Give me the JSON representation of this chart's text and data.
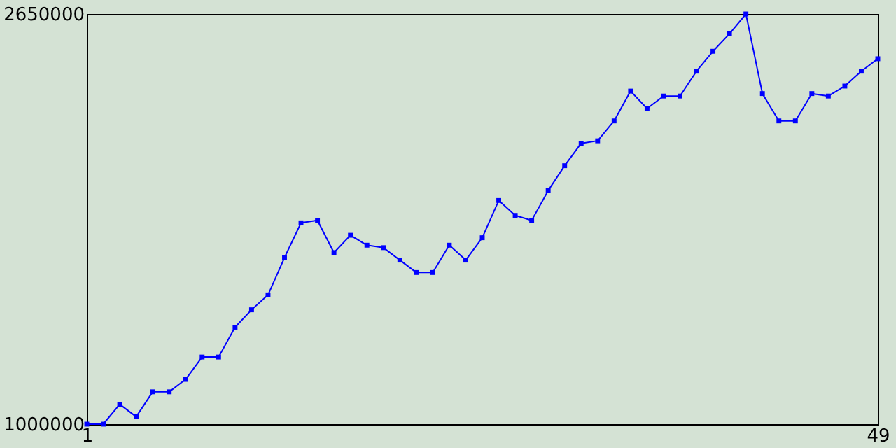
{
  "chart_data": {
    "type": "line",
    "x": [
      1,
      2,
      3,
      4,
      5,
      6,
      7,
      8,
      9,
      10,
      11,
      12,
      13,
      14,
      15,
      16,
      17,
      18,
      19,
      20,
      21,
      22,
      23,
      24,
      25,
      26,
      27,
      28,
      29,
      30,
      31,
      32,
      33,
      34,
      35,
      36,
      37,
      38,
      39,
      40,
      41,
      42,
      43,
      44,
      45,
      46,
      47,
      48,
      49
    ],
    "series": [
      {
        "color": "#0000ff",
        "values": [
          1000000,
          1000000,
          1080000,
          1030000,
          1130000,
          1130000,
          1180000,
          1270000,
          1270000,
          1390000,
          1460000,
          1520000,
          1670000,
          1810000,
          1820000,
          1690000,
          1760000,
          1720000,
          1710000,
          1660000,
          1610000,
          1610000,
          1720000,
          1660000,
          1750000,
          1900000,
          1840000,
          1820000,
          1940000,
          2040000,
          2130000,
          2140000,
          2220000,
          2340000,
          2270000,
          2320000,
          2320000,
          2420000,
          2500000,
          2570000,
          2650000,
          2330000,
          2220000,
          2220000,
          2330000,
          2320000,
          2360000,
          2420000,
          2470000
        ]
      }
    ],
    "xlim": [
      1,
      49
    ],
    "xticks": [
      1,
      49
    ],
    "ylim": [
      1000000,
      2650000
    ],
    "yticks": [
      1000000,
      2650000
    ],
    "marker": "square",
    "line_style": "solid",
    "grid": false
  }
}
